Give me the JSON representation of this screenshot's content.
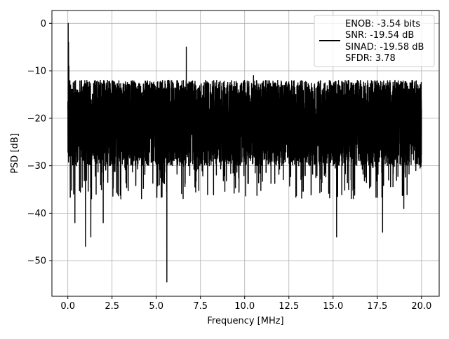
{
  "chart_data": {
    "type": "line",
    "xlabel": "Frequency [MHz]",
    "ylabel": "PSD [dB]",
    "xlim": [
      -0.9,
      21.0
    ],
    "ylim": [
      -57.5,
      2.7
    ],
    "xticks": [
      0.0,
      2.5,
      5.0,
      7.5,
      10.0,
      12.5,
      15.0,
      17.5,
      20.0
    ],
    "xtick_labels": [
      "0.0",
      "2.5",
      "5.0",
      "7.5",
      "10.0",
      "12.5",
      "15.0",
      "17.5",
      "20.0"
    ],
    "yticks": [
      0,
      -10,
      -20,
      -30,
      -40,
      -50
    ],
    "ytick_labels": [
      "0",
      "−10",
      "−20",
      "−30",
      "−40",
      "−50"
    ],
    "grid": true,
    "legend_location": "upper right",
    "legend_lines": [
      "ENOB: -3.54 bits",
      "SNR: -19.54 dB",
      "SINAD: -19.58 dB",
      "SFDR: 3.78"
    ],
    "series": [
      {
        "color": "#000000",
        "x": [
          0.0,
          0.02,
          0.04,
          0.06,
          0.08,
          0.1,
          0.15,
          0.2,
          0.25,
          0.3,
          0.35,
          0.4,
          0.45,
          0.5,
          0.6,
          0.7,
          0.8,
          0.9,
          1.0,
          1.1,
          1.3,
          1.5,
          1.6,
          1.8,
          2.0,
          2.5,
          2.8,
          3.0,
          3.5,
          4.0,
          4.5,
          5.0,
          5.5,
          5.6,
          5.7,
          6.0,
          6.5,
          6.7,
          7.0,
          7.5,
          8.0,
          8.5,
          9.0,
          9.5,
          10.0,
          10.5,
          11.0,
          11.5,
          12.0,
          12.5,
          13.0,
          13.5,
          14.0,
          14.5,
          15.0,
          15.2,
          15.5,
          16.0,
          16.5,
          17.0,
          17.5,
          17.8,
          18.0,
          18.5,
          19.0,
          19.5,
          19.9,
          20.0
        ],
        "y": [
          -18,
          0,
          -4,
          -9,
          -16,
          -28,
          -14,
          -22,
          -19,
          -24,
          -17,
          -42,
          -26,
          -30,
          -20,
          -23,
          -18,
          -27,
          -47,
          -21,
          -45,
          -15,
          -36,
          -25,
          -42,
          -13,
          -19,
          -37,
          -21,
          -28,
          -13,
          -20,
          -22,
          -54.5,
          -12,
          -25,
          -19,
          -5,
          -23,
          -22,
          -30,
          -16,
          -24,
          -20,
          -26,
          -11,
          -23,
          -22,
          -19,
          -25,
          -21,
          -24,
          -18,
          -17,
          -24,
          -45,
          -22,
          -20,
          -14,
          -23,
          -20,
          -44,
          -24,
          -12,
          -39,
          -19,
          -20,
          -18
        ]
      }
    ]
  }
}
